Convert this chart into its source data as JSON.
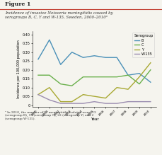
{
  "title_figure": "Figure 1",
  "title_main": "Incidence of invasive Neisseria meningitidis caused by\nserogroups B, C, Y and W-135, Sweden, 2000–2010ᵃ",
  "footnote": "ᵃ In 2010, the number of N. meningitidis isolates were: 12\n(serogroup B), 19 (serogroup C), 22 (serogroup Y) and 2\n(serogroup W-135).",
  "years": [
    2000,
    2001,
    2002,
    2003,
    2004,
    2005,
    2006,
    2007,
    2008,
    2009,
    2010
  ],
  "serogroup_B": [
    0.26,
    0.37,
    0.23,
    0.3,
    0.27,
    0.28,
    0.27,
    0.27,
    0.17,
    0.18,
    0.13
  ],
  "serogroup_C": [
    0.17,
    0.17,
    0.12,
    0.11,
    0.16,
    0.16,
    0.16,
    0.16,
    0.17,
    0.12,
    0.2
  ],
  "serogroup_Y": [
    0.06,
    0.1,
    0.02,
    0.02,
    0.06,
    0.05,
    0.04,
    0.1,
    0.09,
    0.16,
    0.24
  ],
  "serogroup_W135": [
    0.06,
    0.03,
    0.01,
    0.01,
    0.01,
    0.02,
    0.01,
    0.01,
    0.02,
    0.02,
    0.02
  ],
  "color_B": "#4a90b8",
  "color_C": "#6ab04c",
  "color_Y": "#a8a832",
  "color_W135": "#9b8db0",
  "ylabel": "Incidence per 100,000 population",
  "xlabel": "Year",
  "ylim": [
    -0.01,
    0.42
  ],
  "yticks": [
    0.0,
    0.05,
    0.1,
    0.15,
    0.2,
    0.25,
    0.3,
    0.35,
    0.4
  ],
  "legend_title": "Serogroup",
  "legend_labels": [
    "B",
    "C",
    "Y",
    "W-135"
  ],
  "bg_color": "#f5f4ee",
  "plot_bg": "#f5f4ee",
  "line_color_underline": "#c0392b"
}
